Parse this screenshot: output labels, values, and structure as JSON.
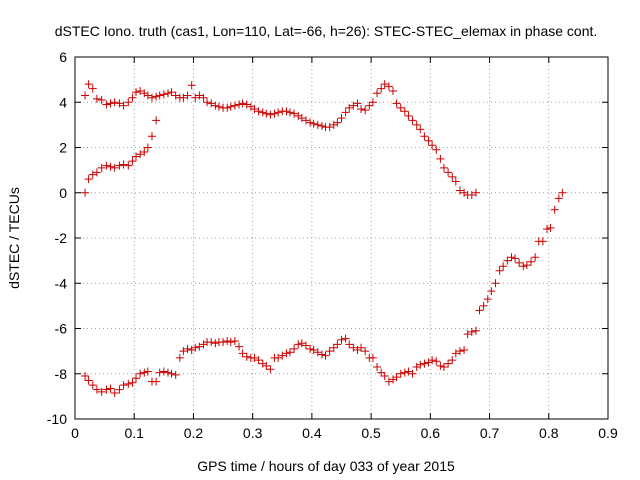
{
  "chart_data": {
    "type": "scatter",
    "title": "dSTEC Iono. truth (cas1, Lon=110, Lat=-66, h=26): STEC-STEC_elemax in phase cont.",
    "xlabel": "GPS time / hours of day 033 of year 2015",
    "ylabel": "dSTEC  / TECUs",
    "xlim": [
      0,
      0.9
    ],
    "ylim": [
      -10,
      6
    ],
    "xticks": [
      "0",
      "0.1",
      "0.2",
      "0.3",
      "0.4",
      "0.5",
      "0.6",
      "0.7",
      "0.8",
      "0.9"
    ],
    "yticks": [
      "-10",
      "-8",
      "-6",
      "-4",
      "-2",
      "0",
      "2",
      "4",
      "6"
    ],
    "grid": true,
    "legend": "none",
    "marker": "plus",
    "color": "#cc0000",
    "series": [
      {
        "points": [
          [
            0.017,
            4.3
          ],
          [
            0.023,
            4.8
          ],
          [
            0.03,
            4.6
          ],
          [
            0.037,
            4.15
          ],
          [
            0.045,
            4.1
          ],
          [
            0.053,
            3.9
          ],
          [
            0.06,
            3.95
          ],
          [
            0.067,
            4.0
          ],
          [
            0.075,
            3.95
          ],
          [
            0.082,
            3.85
          ],
          [
            0.09,
            4.0
          ],
          [
            0.097,
            4.2
          ],
          [
            0.103,
            4.45
          ],
          [
            0.11,
            4.5
          ],
          [
            0.117,
            4.4
          ],
          [
            0.123,
            4.3
          ],
          [
            0.13,
            4.2
          ],
          [
            0.137,
            4.25
          ],
          [
            0.143,
            4.3
          ],
          [
            0.15,
            4.35
          ],
          [
            0.157,
            4.4
          ],
          [
            0.163,
            4.45
          ],
          [
            0.17,
            4.3
          ],
          [
            0.177,
            4.2
          ],
          [
            0.183,
            4.2
          ],
          [
            0.19,
            4.3
          ],
          [
            0.197,
            4.75
          ],
          [
            0.203,
            4.2
          ],
          [
            0.21,
            4.3
          ],
          [
            0.217,
            4.2
          ],
          [
            0.223,
            4.0
          ],
          [
            0.23,
            3.95
          ],
          [
            0.237,
            3.85
          ],
          [
            0.243,
            3.8
          ],
          [
            0.25,
            3.75
          ],
          [
            0.257,
            3.75
          ],
          [
            0.263,
            3.8
          ],
          [
            0.27,
            3.85
          ],
          [
            0.277,
            3.9
          ],
          [
            0.283,
            3.95
          ],
          [
            0.29,
            3.9
          ],
          [
            0.297,
            3.8
          ],
          [
            0.303,
            3.7
          ],
          [
            0.31,
            3.6
          ],
          [
            0.317,
            3.55
          ],
          [
            0.323,
            3.5
          ],
          [
            0.33,
            3.45
          ],
          [
            0.337,
            3.5
          ],
          [
            0.343,
            3.55
          ],
          [
            0.35,
            3.6
          ],
          [
            0.357,
            3.6
          ],
          [
            0.363,
            3.55
          ],
          [
            0.37,
            3.5
          ],
          [
            0.377,
            3.4
          ],
          [
            0.383,
            3.3
          ],
          [
            0.39,
            3.2
          ],
          [
            0.397,
            3.1
          ],
          [
            0.403,
            3.05
          ],
          [
            0.41,
            3.0
          ],
          [
            0.417,
            2.95
          ],
          [
            0.423,
            2.9
          ],
          [
            0.43,
            2.9
          ],
          [
            0.437,
            3.0
          ],
          [
            0.443,
            3.1
          ],
          [
            0.45,
            3.3
          ],
          [
            0.457,
            3.55
          ],
          [
            0.463,
            3.75
          ],
          [
            0.47,
            3.85
          ],
          [
            0.477,
            3.95
          ],
          [
            0.483,
            3.7
          ],
          [
            0.49,
            3.65
          ],
          [
            0.497,
            3.85
          ],
          [
            0.503,
            4.0
          ],
          [
            0.51,
            4.4
          ],
          [
            0.517,
            4.6
          ],
          [
            0.523,
            4.8
          ],
          [
            0.53,
            4.7
          ],
          [
            0.537,
            4.5
          ],
          [
            0.543,
            3.95
          ],
          [
            0.55,
            3.75
          ],
          [
            0.557,
            3.6
          ],
          [
            0.563,
            3.4
          ],
          [
            0.57,
            3.2
          ],
          [
            0.577,
            3.0
          ],
          [
            0.583,
            2.8
          ],
          [
            0.59,
            2.5
          ],
          [
            0.597,
            2.3
          ],
          [
            0.603,
            2.1
          ],
          [
            0.61,
            1.9
          ],
          [
            0.617,
            1.5
          ],
          [
            0.623,
            1.1
          ],
          [
            0.63,
            0.9
          ],
          [
            0.637,
            0.7
          ],
          [
            0.643,
            0.5
          ],
          [
            0.65,
            0.1
          ],
          [
            0.657,
            0.0
          ],
          [
            0.663,
            -0.1
          ],
          [
            0.67,
            -0.1
          ],
          [
            0.677,
            0.0
          ]
        ]
      },
      {
        "points": [
          [
            0.017,
            0.0
          ],
          [
            0.023,
            0.6
          ],
          [
            0.03,
            0.8
          ],
          [
            0.037,
            0.9
          ],
          [
            0.045,
            1.1
          ],
          [
            0.053,
            1.2
          ],
          [
            0.06,
            1.15
          ],
          [
            0.067,
            1.1
          ],
          [
            0.075,
            1.2
          ],
          [
            0.082,
            1.25
          ],
          [
            0.09,
            1.2
          ],
          [
            0.097,
            1.4
          ],
          [
            0.103,
            1.6
          ],
          [
            0.11,
            1.7
          ],
          [
            0.117,
            1.8
          ],
          [
            0.123,
            2.0
          ],
          [
            0.13,
            2.5
          ],
          [
            0.137,
            3.2
          ]
        ]
      },
      {
        "points": [
          [
            0.017,
            -8.1
          ],
          [
            0.023,
            -8.3
          ],
          [
            0.03,
            -8.5
          ],
          [
            0.037,
            -8.7
          ],
          [
            0.045,
            -8.8
          ],
          [
            0.053,
            -8.7
          ],
          [
            0.06,
            -8.65
          ],
          [
            0.067,
            -8.85
          ],
          [
            0.075,
            -8.7
          ],
          [
            0.082,
            -8.5
          ],
          [
            0.09,
            -8.45
          ],
          [
            0.097,
            -8.4
          ],
          [
            0.103,
            -8.2
          ],
          [
            0.11,
            -8.0
          ],
          [
            0.117,
            -7.95
          ],
          [
            0.123,
            -7.9
          ],
          [
            0.13,
            -8.35
          ],
          [
            0.137,
            -8.35
          ],
          [
            0.143,
            -7.95
          ],
          [
            0.15,
            -7.9
          ],
          [
            0.157,
            -7.95
          ],
          [
            0.163,
            -8.0
          ],
          [
            0.17,
            -8.05
          ],
          [
            0.177,
            -7.3
          ],
          [
            0.183,
            -7.0
          ],
          [
            0.19,
            -6.9
          ],
          [
            0.197,
            -6.95
          ],
          [
            0.203,
            -6.85
          ],
          [
            0.21,
            -6.8
          ],
          [
            0.217,
            -6.7
          ],
          [
            0.223,
            -6.6
          ],
          [
            0.23,
            -6.6
          ],
          [
            0.237,
            -6.65
          ],
          [
            0.243,
            -6.6
          ],
          [
            0.25,
            -6.6
          ],
          [
            0.257,
            -6.55
          ],
          [
            0.263,
            -6.6
          ],
          [
            0.27,
            -6.55
          ],
          [
            0.277,
            -6.8
          ],
          [
            0.283,
            -7.1
          ],
          [
            0.29,
            -7.25
          ],
          [
            0.297,
            -7.3
          ],
          [
            0.303,
            -7.3
          ],
          [
            0.31,
            -7.4
          ],
          [
            0.317,
            -7.55
          ],
          [
            0.323,
            -7.65
          ],
          [
            0.33,
            -7.8
          ],
          [
            0.337,
            -7.3
          ],
          [
            0.343,
            -7.3
          ],
          [
            0.35,
            -7.2
          ],
          [
            0.357,
            -7.1
          ],
          [
            0.363,
            -7.05
          ],
          [
            0.37,
            -6.9
          ],
          [
            0.377,
            -6.7
          ],
          [
            0.383,
            -6.65
          ],
          [
            0.39,
            -6.75
          ],
          [
            0.397,
            -6.9
          ],
          [
            0.403,
            -6.95
          ],
          [
            0.41,
            -7.05
          ],
          [
            0.417,
            -7.15
          ],
          [
            0.423,
            -7.2
          ],
          [
            0.43,
            -7.0
          ],
          [
            0.437,
            -6.85
          ],
          [
            0.443,
            -6.7
          ],
          [
            0.45,
            -6.5
          ],
          [
            0.457,
            -6.45
          ],
          [
            0.463,
            -6.7
          ],
          [
            0.47,
            -6.85
          ],
          [
            0.477,
            -6.95
          ],
          [
            0.483,
            -6.85
          ],
          [
            0.49,
            -7.0
          ],
          [
            0.497,
            -7.3
          ],
          [
            0.503,
            -7.3
          ],
          [
            0.51,
            -7.7
          ],
          [
            0.517,
            -7.95
          ],
          [
            0.523,
            -8.1
          ],
          [
            0.53,
            -8.35
          ],
          [
            0.537,
            -8.25
          ],
          [
            0.543,
            -8.15
          ],
          [
            0.55,
            -8.0
          ],
          [
            0.557,
            -7.95
          ],
          [
            0.563,
            -7.9
          ],
          [
            0.57,
            -8.0
          ],
          [
            0.577,
            -7.7
          ],
          [
            0.583,
            -7.6
          ],
          [
            0.59,
            -7.55
          ],
          [
            0.597,
            -7.5
          ],
          [
            0.603,
            -7.4
          ],
          [
            0.61,
            -7.45
          ],
          [
            0.617,
            -7.65
          ],
          [
            0.623,
            -7.7
          ],
          [
            0.63,
            -7.55
          ],
          [
            0.637,
            -7.4
          ],
          [
            0.643,
            -7.1
          ],
          [
            0.65,
            -7.0
          ],
          [
            0.657,
            -6.95
          ],
          [
            0.663,
            -6.25
          ],
          [
            0.67,
            -6.15
          ],
          [
            0.677,
            -6.1
          ],
          [
            0.683,
            -5.2
          ],
          [
            0.69,
            -5.0
          ],
          [
            0.697,
            -4.7
          ],
          [
            0.703,
            -4.35
          ],
          [
            0.71,
            -4.0
          ],
          [
            0.717,
            -3.45
          ],
          [
            0.723,
            -3.25
          ],
          [
            0.73,
            -3.0
          ],
          [
            0.737,
            -2.85
          ],
          [
            0.743,
            -2.9
          ],
          [
            0.75,
            -3.1
          ],
          [
            0.757,
            -3.25
          ],
          [
            0.763,
            -3.2
          ],
          [
            0.77,
            -3.05
          ],
          [
            0.777,
            -2.85
          ],
          [
            0.783,
            -2.15
          ],
          [
            0.79,
            -2.15
          ],
          [
            0.797,
            -1.6
          ],
          [
            0.803,
            -1.55
          ],
          [
            0.81,
            -0.75
          ],
          [
            0.817,
            -0.25
          ],
          [
            0.823,
            0.0
          ]
        ]
      }
    ]
  }
}
